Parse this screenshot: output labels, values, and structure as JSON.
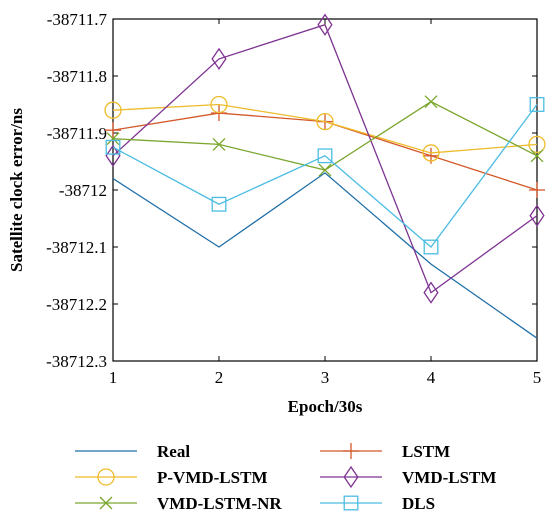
{
  "chart_data": {
    "type": "line",
    "title": "",
    "xlabel": "Epoch/30s",
    "ylabel": "Satellite clock error/ns",
    "x": [
      1,
      2,
      3,
      4,
      5
    ],
    "xticks": [
      "1",
      "2",
      "3",
      "4",
      "5"
    ],
    "xlim": [
      1,
      5
    ],
    "ylim": [
      -38712.3,
      -38711.7
    ],
    "yticks": [
      "-38711.7",
      "-38711.8",
      "-38711.9",
      "-38712",
      "-38712.1",
      "-38712.2",
      "-38712.3"
    ],
    "ytick_values": [
      -38711.7,
      -38711.8,
      -38711.9,
      -38712.0,
      -38712.1,
      -38712.2,
      -38712.3
    ],
    "grid": false,
    "legend_position": "bottom",
    "series": [
      {
        "name": "Real",
        "color": "#1f6fa8",
        "marker": "none",
        "values": [
          -38711.98,
          -38712.1,
          -38711.97,
          -38712.13,
          -38712.26
        ]
      },
      {
        "name": "LSTM",
        "color": "#d4582a",
        "marker": "plus",
        "values": [
          -38711.895,
          -38711.865,
          -38711.88,
          -38711.94,
          -38712.0
        ]
      },
      {
        "name": "P-VMD-LSTM",
        "color": "#eebb2a",
        "marker": "circle",
        "values": [
          -38711.86,
          -38711.85,
          -38711.88,
          -38711.935,
          -38711.92
        ]
      },
      {
        "name": "VMD-LSTM",
        "color": "#7e3391",
        "marker": "diamond",
        "values": [
          -38711.94,
          -38711.77,
          -38711.71,
          -38712.18,
          -38712.045
        ]
      },
      {
        "name": "VMD-LSTM-NR",
        "color": "#7aa62e",
        "marker": "x",
        "values": [
          -38711.91,
          -38711.92,
          -38711.965,
          -38711.845,
          -38711.94
        ]
      },
      {
        "name": "DLS",
        "color": "#4cbde2",
        "marker": "square",
        "values": [
          -38711.925,
          -38712.025,
          -38711.94,
          -38712.1,
          -38711.85
        ]
      }
    ]
  }
}
